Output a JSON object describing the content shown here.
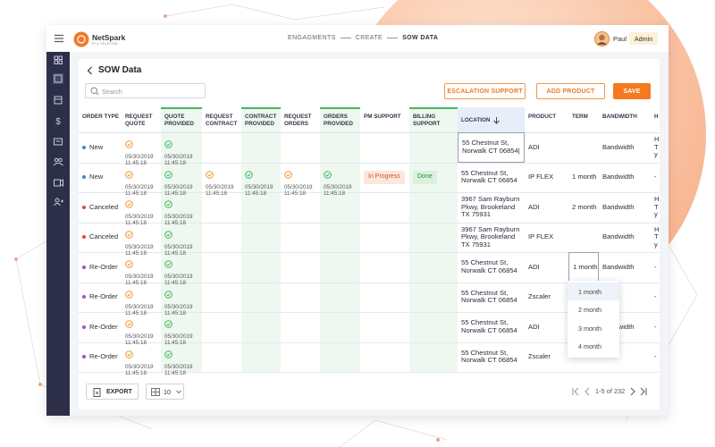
{
  "header": {
    "brand": "NetSpark",
    "brand_tagline": "IP & TELECOM",
    "breadcrumb": [
      "ENGAGMENTS",
      "CREATE",
      "SOW DATA"
    ],
    "user": "Paul",
    "role": "Admin"
  },
  "page": {
    "title": "SOW Data",
    "search_placeholder": "Search",
    "buttons": [
      "ESCALATION SUPPORT",
      "ADD PRODUCT",
      "SAVE"
    ]
  },
  "table": {
    "columns": [
      "ORDER TYPE",
      "REQUEST QUOTE",
      "QUOTE PROVIDED",
      "REQUEST CONTRACT",
      "CONTRACT PROVIDED",
      "REQUEST ORDERS",
      "ORDERS PROVIDED",
      "PM SUPPORT",
      "BILLING SUPPORT",
      "LOCATION",
      "PRODUCT",
      "TERM",
      "BANDWIDTH",
      "H TY"
    ],
    "rows": [
      {
        "order_type": "New",
        "dot_color": "#4a7fe0",
        "steps": [
          {
            "date": "05/30/2019",
            "time": "11:45:18"
          },
          {
            "date": "05/30/2019",
            "time": "11:45:18"
          },
          null,
          null,
          null,
          null
        ],
        "pm_support": null,
        "billing_support": null,
        "location": "55 Chestnut St, Norwalk CT 06854|",
        "product": "ADI",
        "term": null,
        "bandwidth": "Bandwidth",
        "extra": "H Ty"
      },
      {
        "order_type": "New",
        "dot_color": "#4a7fe0",
        "steps": [
          {
            "date": "05/30/2019",
            "time": "11:45:18"
          },
          {
            "date": "05/30/2019",
            "time": "11:45:18"
          },
          {
            "date": "05/30/2019",
            "time": "11:45:18"
          },
          {
            "date": "05/30/2019",
            "time": "11:45:18"
          },
          {
            "date": "05/30/2019",
            "time": "11:45:18"
          },
          {
            "date": "05/30/2019",
            "time": "11:45:18"
          }
        ],
        "pm_support": "In Progress",
        "billing_support": "Done",
        "location": "55 Chestnut St, Norwalk CT 06854",
        "product": "IP FLEX",
        "term": "1 month",
        "bandwidth": "Bandwidth",
        "extra": "-"
      },
      {
        "order_type": "Canceled",
        "dot_color": "#e0463c",
        "steps": [
          {
            "date": "05/30/2019",
            "time": "11:45:18"
          },
          {
            "date": "05/30/2019",
            "time": "11:45:18"
          },
          null,
          null,
          null,
          null
        ],
        "pm_support": null,
        "billing_support": null,
        "location": "3967 Sam Rayburn Pkwy, Brookeland TX 75931",
        "product": "ADI",
        "term": "2 month",
        "bandwidth": "Bandwidth",
        "extra": "H Ty"
      },
      {
        "order_type": "Canceled",
        "dot_color": "#e0463c",
        "steps": [
          {
            "date": "05/30/2019",
            "time": "11:45:18"
          },
          {
            "date": "05/30/2019",
            "time": "11:45:18"
          },
          null,
          null,
          null,
          null
        ],
        "pm_support": null,
        "billing_support": null,
        "location": "3967 Sam Rayburn Pkwy, Brookeland TX 75931",
        "product": "IP FLEX",
        "term": null,
        "bandwidth": "Bandwidth",
        "extra": "H Ty"
      },
      {
        "order_type": "Re-Order",
        "dot_color": "#9b4fd6",
        "steps": [
          {
            "date": "05/30/2019",
            "time": "11:45:18"
          },
          {
            "date": "05/30/2019",
            "time": "11:45:18"
          },
          null,
          null,
          null,
          null
        ],
        "pm_support": null,
        "billing_support": null,
        "location": "55 Chestnut St, Norwalk CT 06854",
        "product": "ADI",
        "term": "1 month",
        "bandwidth": "Bandwidth",
        "extra": "-"
      },
      {
        "order_type": "Re-Order",
        "dot_color": "#9b4fd6",
        "steps": [
          {
            "date": "05/30/2019",
            "time": "11:45:18"
          },
          {
            "date": "05/30/2019",
            "time": "11:45:18"
          },
          null,
          null,
          null,
          null
        ],
        "pm_support": null,
        "billing_support": null,
        "location": "55 Chestnut St, Norwalk CT 06854",
        "product": "Zscaler",
        "term": null,
        "bandwidth": null,
        "extra": "-"
      },
      {
        "order_type": "Re-Order",
        "dot_color": "#9b4fd6",
        "steps": [
          {
            "date": "05/30/2019",
            "time": "11:45:18"
          },
          {
            "date": "05/30/2019",
            "time": "11:45:18"
          },
          null,
          null,
          null,
          null
        ],
        "pm_support": null,
        "billing_support": null,
        "location": "55 Chestnut St, Norwalk CT 06854",
        "product": "ADI",
        "term": null,
        "bandwidth": "Bandwidth",
        "extra": "-"
      },
      {
        "order_type": "Re-Order",
        "dot_color": "#9b4fd6",
        "steps": [
          {
            "date": "05/30/2019",
            "time": "11:45:18"
          },
          {
            "date": "05/30/2019",
            "time": "11:45:18"
          },
          null,
          null,
          null,
          null
        ],
        "pm_support": null,
        "billing_support": null,
        "location": "55 Chestnut St, Norwalk CT 06854",
        "product": "Zscaler",
        "term": null,
        "bandwidth": null,
        "extra": "-"
      }
    ]
  },
  "dropdown": {
    "options": [
      "1 month",
      "2 month",
      "3 month",
      "4 month"
    ]
  },
  "footer": {
    "export": "EXPORT",
    "page_size": "10",
    "pagination": "1-5 of 232"
  }
}
